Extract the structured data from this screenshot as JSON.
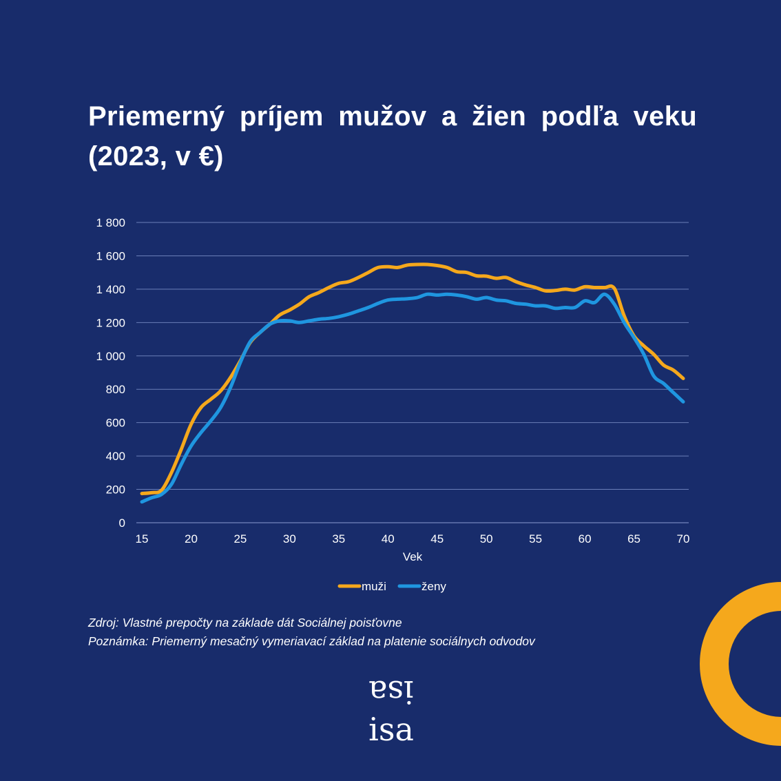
{
  "header": {
    "title": "Priemerný príjem mužov a žien podľa veku (2023, v €)"
  },
  "chart_data": {
    "type": "line",
    "title": "Priemerný príjem mužov a žien podľa veku (2023, v €)",
    "xlabel": "Vek",
    "ylabel": "",
    "xlim": [
      15,
      70
    ],
    "ylim": [
      0,
      1800
    ],
    "x_ticks": [
      15,
      20,
      25,
      30,
      35,
      40,
      45,
      50,
      55,
      60,
      65,
      70
    ],
    "y_ticks": [
      0,
      200,
      400,
      600,
      800,
      1000,
      1200,
      1400,
      1600,
      1800
    ],
    "y_tick_labels": [
      "0",
      "200",
      "400",
      "600",
      "800",
      "1 000",
      "1 200",
      "1 400",
      "1 600",
      "1 800"
    ],
    "grid": "horizontal",
    "legend": "bottom",
    "x": [
      15,
      16,
      17,
      18,
      19,
      20,
      21,
      22,
      23,
      24,
      25,
      26,
      27,
      28,
      29,
      30,
      31,
      32,
      33,
      34,
      35,
      36,
      37,
      38,
      39,
      40,
      41,
      42,
      43,
      44,
      45,
      46,
      47,
      48,
      49,
      50,
      51,
      52,
      53,
      54,
      55,
      56,
      57,
      58,
      59,
      60,
      61,
      62,
      63,
      64,
      65,
      66,
      67,
      68,
      69,
      70
    ],
    "series": [
      {
        "name": "muži",
        "color": "#f5a81c",
        "values": [
          175,
          180,
          195,
          300,
          440,
          590,
          690,
          740,
          790,
          870,
          970,
          1080,
          1140,
          1190,
          1245,
          1275,
          1310,
          1355,
          1380,
          1410,
          1435,
          1445,
          1470,
          1500,
          1530,
          1535,
          1530,
          1545,
          1548,
          1548,
          1542,
          1530,
          1505,
          1500,
          1480,
          1478,
          1465,
          1470,
          1445,
          1425,
          1410,
          1390,
          1392,
          1400,
          1395,
          1415,
          1410,
          1410,
          1405,
          1240,
          1120,
          1060,
          1010,
          945,
          915,
          865
        ]
      },
      {
        "name": "ženy",
        "color": "#1f96e0",
        "values": [
          125,
          150,
          170,
          230,
          350,
          460,
          540,
          610,
          690,
          810,
          960,
          1085,
          1140,
          1190,
          1210,
          1210,
          1200,
          1210,
          1220,
          1225,
          1235,
          1250,
          1270,
          1290,
          1315,
          1335,
          1340,
          1343,
          1350,
          1370,
          1365,
          1370,
          1365,
          1355,
          1340,
          1350,
          1335,
          1330,
          1315,
          1310,
          1300,
          1300,
          1285,
          1290,
          1290,
          1330,
          1320,
          1370,
          1310,
          1200,
          1110,
          1010,
          880,
          835,
          780,
          725
        ]
      }
    ]
  },
  "notes": {
    "source": "Zdroj: Vlastné prepočty na základe dát Sociálnej poisťovne",
    "note": "Poznámka: Priemerný mesačný vymeriavací základ na platenie sociálnych odvodov"
  },
  "logo": {
    "text": "isa"
  },
  "colors": {
    "background": "#182c6b",
    "accent": "#f5a81c",
    "series_men": "#f5a81c",
    "series_women": "#1f96e0",
    "gridline": "#6b7fb8"
  }
}
